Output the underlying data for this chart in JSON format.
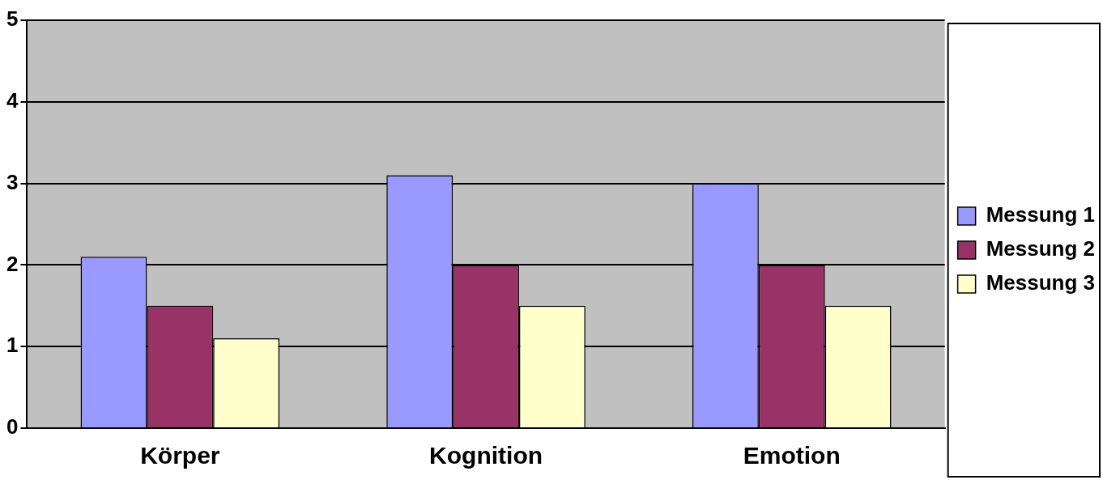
{
  "chart_data": {
    "type": "bar",
    "categories": [
      "Körper",
      "Kognition",
      "Emotion"
    ],
    "series": [
      {
        "name": "Messung 1",
        "color": "#9999ff",
        "values": [
          2.1,
          3.1,
          3.0
        ]
      },
      {
        "name": "Messung 2",
        "color": "#993366",
        "values": [
          1.5,
          2.0,
          2.0
        ]
      },
      {
        "name": "Messung 3",
        "color": "#ffffcc",
        "values": [
          1.1,
          1.5,
          1.5
        ]
      }
    ],
    "ylim": [
      0,
      5
    ],
    "yticks": [
      0,
      1,
      2,
      3,
      4,
      5
    ],
    "grid": "y",
    "legend": "right"
  }
}
